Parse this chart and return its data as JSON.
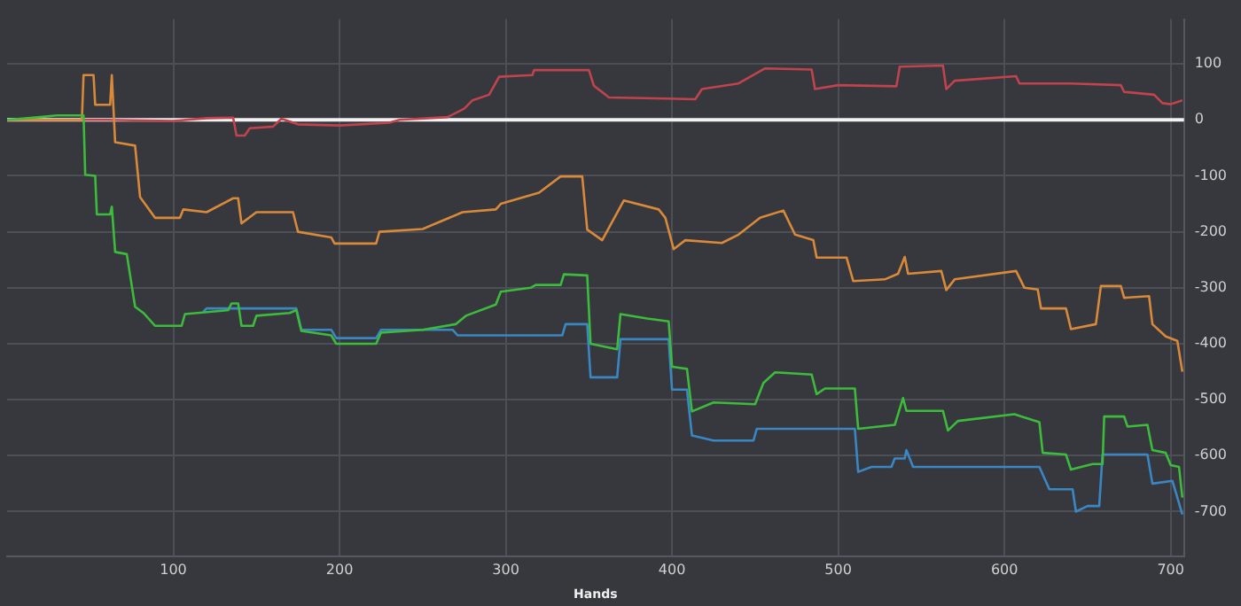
{
  "chart_data": {
    "type": "line",
    "xlabel": "Hands",
    "xlim": [
      0,
      708
    ],
    "xticks": [
      100,
      200,
      300,
      400,
      500,
      600,
      700
    ],
    "ylim": [
      -780,
      180
    ],
    "yticks": [
      100,
      0,
      -100,
      -200,
      -300,
      -400,
      -500,
      -600,
      -700
    ],
    "grid": true,
    "legend": false,
    "marker": "none",
    "line_style": "solid",
    "ref_lines": [
      {
        "axis": "y",
        "value": 0,
        "color": "#f2f2f2"
      }
    ],
    "series": [
      {
        "color": "#c0434d",
        "x": [
          0,
          60,
          100,
          120,
          136,
          138,
          143,
          146,
          160,
          165,
          175,
          200,
          230,
          236,
          265,
          275,
          280,
          290,
          296,
          316,
          317,
          350,
          353,
          360,
          362,
          414,
          418,
          440,
          456,
          484,
          486,
          500,
          535,
          537,
          563,
          565,
          570,
          607,
          609,
          640,
          670,
          672,
          690,
          695,
          700,
          707
        ],
        "values": [
          0,
          0,
          -2,
          3,
          4,
          -28,
          -28,
          -15,
          -12,
          2,
          -8,
          -10,
          -5,
          0,
          5,
          20,
          35,
          45,
          77,
          80,
          89,
          89,
          61,
          45,
          40,
          37,
          55,
          65,
          92,
          90,
          55,
          62,
          60,
          95,
          97,
          55,
          70,
          78,
          65,
          65,
          62,
          50,
          45,
          30,
          28,
          35
        ]
      },
      {
        "color": "#d9893a",
        "x": [
          0,
          45,
          46,
          52,
          53,
          62,
          63,
          65,
          77,
          80,
          89,
          104,
          106,
          120,
          136,
          139,
          141,
          150,
          172,
          175,
          195,
          197,
          222,
          224,
          250,
          274,
          294,
          297,
          320,
          333,
          346,
          349,
          358,
          371,
          392,
          396,
          401,
          408,
          430,
          440,
          453,
          467,
          474,
          485,
          487,
          505,
          509,
          528,
          536,
          540,
          542,
          562,
          565,
          570,
          607,
          612,
          620,
          622,
          637,
          640,
          655,
          658,
          670,
          672,
          687,
          689,
          697,
          704,
          707
        ],
        "values": [
          0,
          0,
          80,
          80,
          27,
          27,
          80,
          -40,
          -46,
          -138,
          -175,
          -175,
          -160,
          -165,
          -140,
          -140,
          -185,
          -165,
          -165,
          -200,
          -210,
          -221,
          -221,
          -200,
          -195,
          -165,
          -160,
          -150,
          -130,
          -101,
          -101,
          -196,
          -215,
          -144,
          -160,
          -175,
          -231,
          -215,
          -220,
          -205,
          -175,
          -162,
          -205,
          -215,
          -246,
          -246,
          -288,
          -285,
          -275,
          -245,
          -275,
          -270,
          -304,
          -285,
          -270,
          -300,
          -303,
          -337,
          -337,
          -374,
          -365,
          -297,
          -297,
          -318,
          -315,
          -365,
          -387,
          -395,
          -450
        ]
      },
      {
        "color": "#3b87c4",
        "x": [
          118,
          120,
          174,
          177,
          195,
          198,
          222,
          225,
          268,
          271,
          334,
          336,
          349,
          351,
          367,
          369,
          398,
          400,
          409,
          412,
          425,
          449,
          451,
          510,
          512,
          520,
          532,
          534,
          540,
          541,
          545,
          621,
          627,
          641,
          643,
          650,
          657,
          659,
          686,
          689,
          701,
          707
        ],
        "values": [
          -343,
          -337,
          -337,
          -375,
          -375,
          -390,
          -390,
          -375,
          -375,
          -385,
          -385,
          -365,
          -365,
          -460,
          -460,
          -392,
          -392,
          -482,
          -482,
          -564,
          -573,
          -573,
          -552,
          -552,
          -629,
          -620,
          -620,
          -605,
          -605,
          -590,
          -620,
          -620,
          -660,
          -660,
          -700,
          -690,
          -690,
          -598,
          -598,
          -650,
          -645,
          -705
        ]
      },
      {
        "color": "#3dbb3d",
        "x": [
          0,
          20,
          30,
          46,
          47,
          53,
          54,
          62,
          63,
          65,
          72,
          77,
          82,
          89,
          105,
          107,
          133,
          135,
          139,
          141,
          148,
          150,
          170,
          174,
          177,
          195,
          198,
          222,
          225,
          250,
          270,
          276,
          294,
          297,
          315,
          318,
          333,
          335,
          349,
          351,
          367,
          369,
          385,
          398,
          400,
          409,
          412,
          425,
          450,
          455,
          462,
          484,
          487,
          492,
          510,
          512,
          534,
          539,
          541,
          563,
          566,
          572,
          606,
          610,
          621,
          623,
          637,
          640,
          653,
          659,
          660,
          672,
          674,
          686,
          689,
          697,
          700,
          705,
          707
        ],
        "values": [
          0,
          5,
          8,
          8,
          -98,
          -100,
          -169,
          -169,
          -155,
          -236,
          -240,
          -334,
          -345,
          -368,
          -368,
          -347,
          -340,
          -328,
          -328,
          -368,
          -368,
          -350,
          -345,
          -340,
          -377,
          -385,
          -400,
          -400,
          -380,
          -375,
          -365,
          -350,
          -330,
          -307,
          -300,
          -295,
          -295,
          -276,
          -278,
          -400,
          -410,
          -347,
          -355,
          -360,
          -441,
          -445,
          -521,
          -505,
          -508,
          -470,
          -451,
          -455,
          -490,
          -480,
          -480,
          -552,
          -545,
          -497,
          -520,
          -520,
          -555,
          -538,
          -526,
          -530,
          -540,
          -595,
          -598,
          -625,
          -615,
          -615,
          -530,
          -530,
          -548,
          -545,
          -590,
          -595,
          -617,
          -620,
          -675
        ]
      }
    ]
  }
}
